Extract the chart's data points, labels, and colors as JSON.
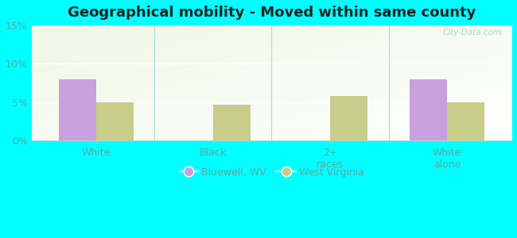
{
  "title": "Geographical mobility - Moved within same county",
  "categories": [
    "White",
    "Black",
    "2+\nraces",
    "White\nalone"
  ],
  "bluewell_values": [
    8.0,
    0.0,
    0.0,
    8.0
  ],
  "wv_values": [
    5.0,
    4.6,
    5.8,
    5.0
  ],
  "bluewell_color": "#c9a0dc",
  "wv_color": "#c8cd8a",
  "ylim": [
    0,
    15
  ],
  "yticks": [
    0,
    5,
    10,
    15
  ],
  "ytick_labels": [
    "0%",
    "5%",
    "10%",
    "15%"
  ],
  "background_color": "#00ffff",
  "plot_bg_topleft": "#d8ecd0",
  "plot_bg_topright": "#eef5f0",
  "plot_bg_bottom": "#f5faf5",
  "grid_color": "#ffffff",
  "bar_width": 0.32,
  "legend_bluewell": "Bluewell, WV",
  "legend_wv": "West Virginia",
  "watermark": "City-Data.com",
  "title_fontsize": 13,
  "tick_fontsize": 9,
  "legend_fontsize": 9,
  "tick_color": "#66aaaa",
  "label_color": "#55aaaa"
}
